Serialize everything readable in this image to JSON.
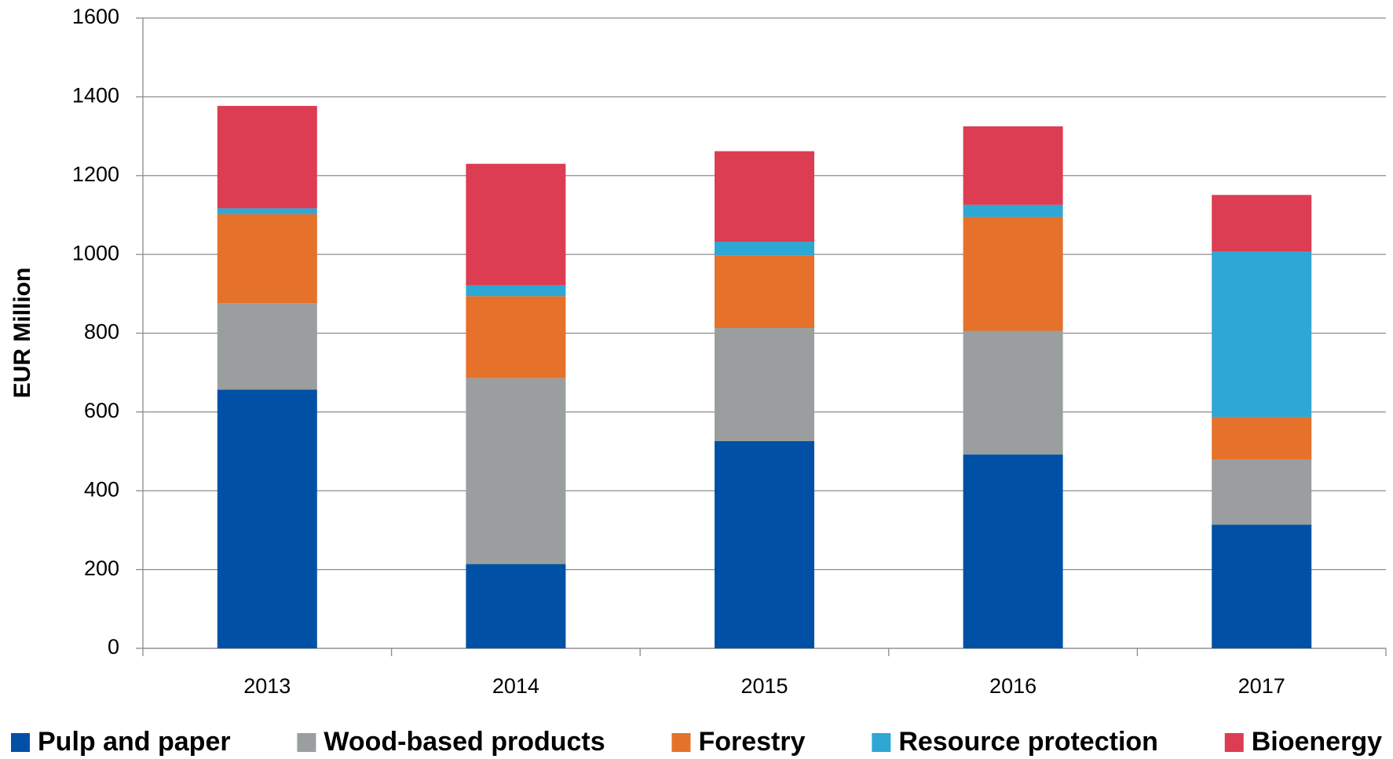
{
  "chart_data": {
    "type": "stacked_bar",
    "y_label": "EUR Million",
    "categories": [
      "2013",
      "2014",
      "2015",
      "2016",
      "2017"
    ],
    "series": [
      {
        "name": "Pulp and paper",
        "color": "#0051a5",
        "values": [
          657,
          214,
          526,
          492,
          314
        ]
      },
      {
        "name": "Wood-based products",
        "color": "#9b9e9f",
        "values": [
          219,
          472,
          287,
          314,
          165
        ]
      },
      {
        "name": "Forestry",
        "color": "#e5712a",
        "values": [
          226,
          208,
          185,
          289,
          108
        ]
      },
      {
        "name": "Resource protection",
        "color": "#2ea7d4",
        "values": [
          15,
          27,
          34,
          31,
          420
        ]
      },
      {
        "name": "Bioenergy",
        "color": "#dc3d52",
        "values": [
          260,
          309,
          230,
          199,
          144
        ]
      }
    ],
    "ylim": [
      0,
      1600
    ],
    "yticks": [
      0,
      200,
      400,
      600,
      800,
      1000,
      1200,
      1400,
      1600
    ],
    "grid": true,
    "legend": "bottom"
  }
}
